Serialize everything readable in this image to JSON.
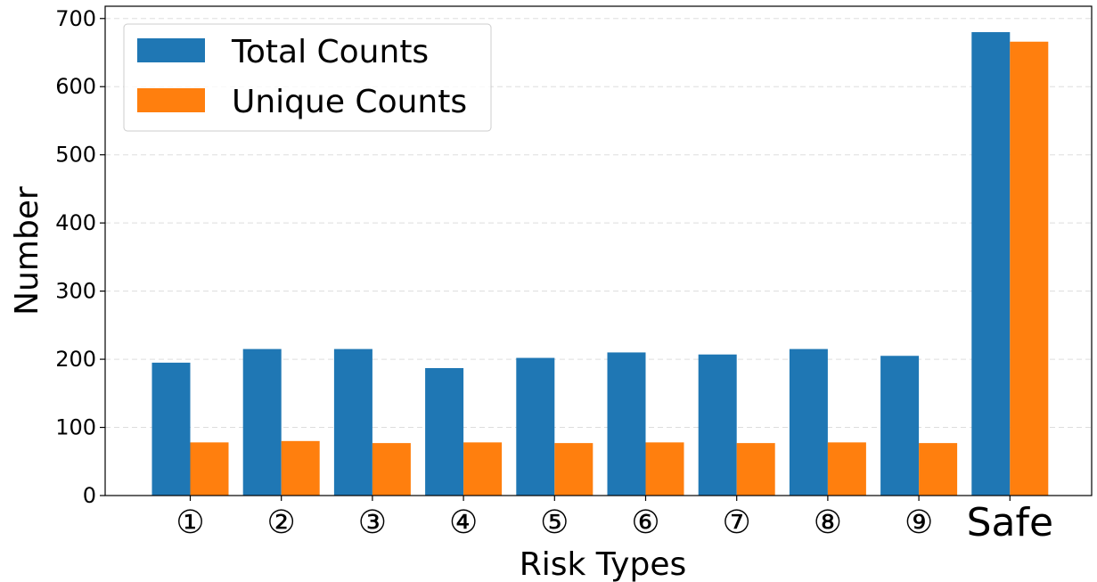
{
  "chart_data": {
    "type": "bar",
    "categories": [
      "①",
      "②",
      "③",
      "④",
      "⑤",
      "⑥",
      "⑦",
      "⑧",
      "⑨",
      "Safe"
    ],
    "series": [
      {
        "name": "Total Counts",
        "color": "#1f77b4",
        "values": [
          195,
          215,
          215,
          187,
          202,
          210,
          207,
          215,
          205,
          680
        ]
      },
      {
        "name": "Unique Counts",
        "color": "#ff7f0e",
        "values": [
          78,
          80,
          77,
          78,
          77,
          78,
          77,
          78,
          77,
          666
        ]
      }
    ],
    "title": "",
    "xlabel": "Risk Types",
    "ylabel": "Number",
    "ylim": [
      0,
      718
    ],
    "yticks": [
      0,
      100,
      200,
      300,
      400,
      500,
      600,
      700
    ],
    "grid": true,
    "legend_position": "top-left"
  }
}
